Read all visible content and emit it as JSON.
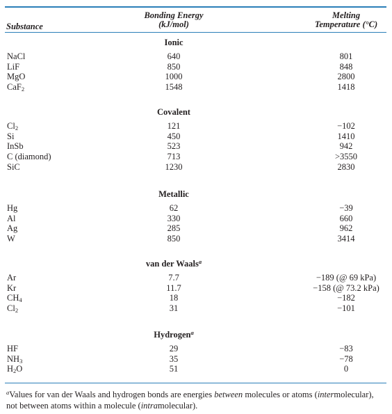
{
  "header": {
    "substance": "Substance",
    "bonding_energy_line1": "Bonding Energy",
    "bonding_energy_line2": "(kJ/mol)",
    "melting_line1": "Melting",
    "melting_line2": "Temperature (°C)"
  },
  "sections": [
    {
      "label": "Ionic",
      "sup": "",
      "rows": [
        {
          "name": "NaCl",
          "sub": "",
          "suffix": "",
          "be": "640",
          "mt": "801"
        },
        {
          "name": "LiF",
          "sub": "",
          "suffix": "",
          "be": "850",
          "mt": "848"
        },
        {
          "name": "MgO",
          "sub": "",
          "suffix": "",
          "be": "1000",
          "mt": "2800"
        },
        {
          "name": "CaF",
          "sub": "2",
          "suffix": "",
          "be": "1548",
          "mt": "1418"
        }
      ]
    },
    {
      "label": "Covalent",
      "sup": "",
      "rows": [
        {
          "name": "Cl",
          "sub": "2",
          "suffix": "",
          "be": "121",
          "mt": "−102"
        },
        {
          "name": "Si",
          "sub": "",
          "suffix": "",
          "be": "450",
          "mt": "1410"
        },
        {
          "name": "InSb",
          "sub": "",
          "suffix": "",
          "be": "523",
          "mt": "942"
        },
        {
          "name": "C (diamond)",
          "sub": "",
          "suffix": "",
          "be": "713",
          "mt": ">3550"
        },
        {
          "name": "SiC",
          "sub": "",
          "suffix": "",
          "be": "1230",
          "mt": "2830"
        }
      ]
    },
    {
      "label": "Metallic",
      "sup": "",
      "rows": [
        {
          "name": "Hg",
          "sub": "",
          "suffix": "",
          "be": "62",
          "mt": "−39"
        },
        {
          "name": "Al",
          "sub": "",
          "suffix": "",
          "be": "330",
          "mt": "660"
        },
        {
          "name": "Ag",
          "sub": "",
          "suffix": "",
          "be": "285",
          "mt": "962"
        },
        {
          "name": "W",
          "sub": "",
          "suffix": "",
          "be": "850",
          "mt": "3414"
        }
      ]
    },
    {
      "label": "van der Waals",
      "sup": "a",
      "rows": [
        {
          "name": "Ar",
          "sub": "",
          "suffix": "",
          "be": "7.7",
          "mt": "−189 (@ 69 kPa)"
        },
        {
          "name": "Kr",
          "sub": "",
          "suffix": "",
          "be": "11.7",
          "mt": "−158 (@ 73.2 kPa)"
        },
        {
          "name": "CH",
          "sub": "4",
          "suffix": "",
          "be": "18",
          "mt": "−182"
        },
        {
          "name": "Cl",
          "sub": "2",
          "suffix": "",
          "be": "31",
          "mt": "−101"
        }
      ]
    },
    {
      "label": "Hydrogen",
      "sup": "a",
      "rows": [
        {
          "name": "HF",
          "sub": "",
          "suffix": "",
          "be": "29",
          "mt": "−83"
        },
        {
          "name": "NH",
          "sub": "3",
          "suffix": "",
          "be": "35",
          "mt": "−78"
        },
        {
          "name": "H",
          "sub": "2",
          "suffix": "O",
          "be": "51",
          "mt": "0"
        }
      ]
    }
  ],
  "footnote": {
    "marker": "a",
    "t1": "Values for van der Waals and hydrogen bonds are energies ",
    "between": "between",
    "t2": " molecules or atoms (",
    "inter": "inter",
    "t3": "molecular), not between atoms within a molecule (",
    "intra": "intra",
    "t4": "molecular)."
  }
}
